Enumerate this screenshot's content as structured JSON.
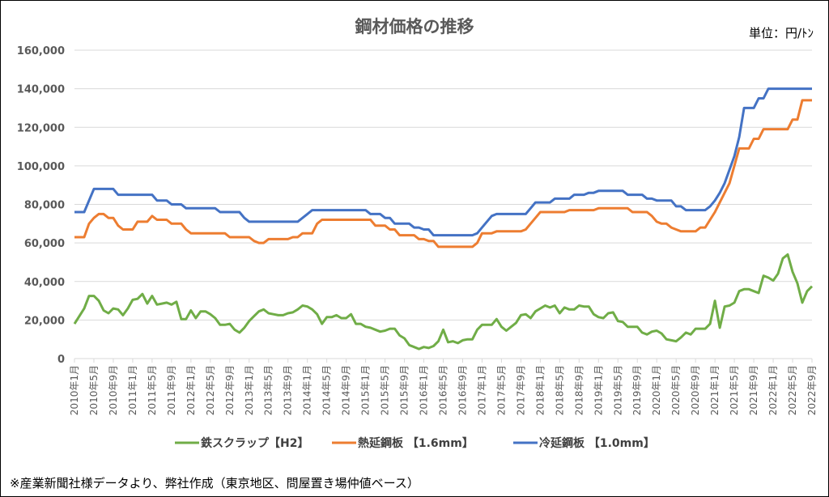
{
  "chart_data": {
    "type": "line",
    "title": "鋼材価格の推移",
    "unit_label": "単位：円/ﾄﾝ",
    "ylim": [
      0,
      160000
    ],
    "y_ticks": [
      "0",
      "20,000",
      "40,000",
      "60,000",
      "80,000",
      "100,000",
      "120,000",
      "140,000",
      "160,000"
    ],
    "y_tick_values": [
      0,
      20000,
      40000,
      60000,
      80000,
      100000,
      120000,
      140000,
      160000
    ],
    "grid": true,
    "legend": "bottom",
    "x_start": "2010年1月",
    "x_end": "2022年9月",
    "x_tick_labels": [
      "2010年1月",
      "2010年5月",
      "2010年9月",
      "2011年1月",
      "2011年5月",
      "2011年9月",
      "2012年1月",
      "2012年5月",
      "2012年9月",
      "2013年1月",
      "2013年5月",
      "2013年9月",
      "2014年1月",
      "2014年5月",
      "2014年9月",
      "2015年1月",
      "2015年5月",
      "2015年9月",
      "2016年1月",
      "2016年5月",
      "2016年9月",
      "2017年1月",
      "2017年5月",
      "2017年9月",
      "2018年1月",
      "2018年5月",
      "2018年9月",
      "2019年1月",
      "2019年5月",
      "2019年9月",
      "2020年1月",
      "2020年5月",
      "2020年9月",
      "2021年1月",
      "2021年5月",
      "2021年9月",
      "2022年1月",
      "2022年5月",
      "2022年9月"
    ],
    "series": [
      {
        "name": "鉄スクラップ【H2】",
        "color": "#70AD47",
        "values_thousand_yen": [
          18,
          22,
          26,
          32.5,
          32.5,
          30,
          25,
          23.5,
          26,
          25.5,
          22.5,
          26,
          30.5,
          31,
          33.5,
          28.5,
          32.5,
          28,
          28.5,
          29,
          28,
          29.5,
          20.5,
          20.5,
          25,
          21,
          24.5,
          24.5,
          23,
          21,
          17.5,
          17.5,
          18,
          15,
          13.5,
          16,
          19.5,
          22,
          24.5,
          25.5,
          23.5,
          23,
          22.5,
          22.5,
          23.5,
          24,
          25.5,
          27.5,
          27,
          25.5,
          23,
          18,
          21.5,
          21.5,
          22.5,
          21,
          21,
          23,
          18,
          18,
          16.5,
          16,
          15,
          14,
          14.5,
          15.5,
          15.5,
          12,
          10.5,
          7,
          6,
          5,
          6,
          5.5,
          6.5,
          9,
          15,
          8.5,
          9,
          8,
          9.5,
          10,
          10,
          15,
          17.5,
          17.5,
          17.5,
          20.5,
          16.5,
          14.5,
          16.5,
          18.5,
          22.5,
          23,
          21,
          24.5,
          26,
          27.5,
          26.5,
          27.5,
          23.5,
          26.5,
          25.5,
          25.5,
          27.5,
          27,
          27,
          23,
          21.5,
          21,
          23.5,
          24,
          19.5,
          19,
          16.5,
          16.5,
          16.5,
          13.5,
          12.5,
          14,
          14.5,
          13,
          10,
          9.5,
          9,
          11,
          13.5,
          12.5,
          15.5,
          15.5,
          15.5,
          18,
          30,
          16,
          27,
          27.5,
          29,
          35,
          36,
          36,
          35,
          34,
          43,
          42,
          40.5,
          44,
          52,
          54,
          45,
          39,
          29,
          35,
          37.5
        ]
      },
      {
        "name": "熱延鋼板 【1.6mm】",
        "color": "#ED7D31",
        "values_thousand_yen": [
          63,
          63,
          63,
          70,
          73,
          75,
          75,
          73,
          73,
          69,
          67,
          67,
          67,
          71,
          71,
          71,
          74,
          72,
          72,
          72,
          70,
          70,
          70,
          67,
          65,
          65,
          65,
          65,
          65,
          65,
          65,
          65,
          63,
          63,
          63,
          63,
          63,
          61,
          60,
          60,
          62,
          62,
          62,
          62,
          62,
          63,
          63,
          65,
          65,
          65,
          70,
          72,
          72,
          72,
          72,
          72,
          72,
          72,
          72,
          72,
          72,
          72,
          69,
          69,
          69,
          67,
          67,
          64,
          64,
          64,
          64,
          62,
          62,
          61,
          61,
          58,
          58,
          58,
          58,
          58,
          58,
          58,
          58,
          60,
          65,
          65,
          65,
          66,
          66,
          66,
          66,
          66,
          66,
          67,
          70,
          73,
          76,
          76,
          76,
          76,
          76,
          76,
          77,
          77,
          77,
          77,
          77,
          77,
          78,
          78,
          78,
          78,
          78,
          78,
          78,
          76,
          76,
          76,
          76,
          74,
          71,
          70,
          70,
          68,
          67,
          66,
          66,
          66,
          66,
          68,
          68,
          72,
          76,
          81,
          86,
          91,
          100,
          109,
          109,
          109,
          114,
          114,
          119,
          119,
          119,
          119,
          119,
          119,
          124,
          124,
          134,
          134,
          134
        ]
      },
      {
        "name": "冷延鋼板 【1.0mm】",
        "color": "#4472C4",
        "values_thousand_yen": [
          76,
          76,
          76,
          82,
          88,
          88,
          88,
          88,
          88,
          85,
          85,
          85,
          85,
          85,
          85,
          85,
          85,
          82,
          82,
          82,
          80,
          80,
          80,
          78,
          78,
          78,
          78,
          78,
          78,
          78,
          76,
          76,
          76,
          76,
          76,
          73,
          71,
          71,
          71,
          71,
          71,
          71,
          71,
          71,
          71,
          71,
          71,
          73,
          75,
          77,
          77,
          77,
          77,
          77,
          77,
          77,
          77,
          77,
          77,
          77,
          77,
          75,
          75,
          75,
          73,
          73,
          70,
          70,
          70,
          70,
          68,
          68,
          67,
          67,
          64,
          64,
          64,
          64,
          64,
          64,
          64,
          64,
          64,
          65,
          68,
          71,
          74,
          75,
          75,
          75,
          75,
          75,
          75,
          75,
          78,
          81,
          81,
          81,
          81,
          83,
          83,
          83,
          83,
          85,
          85,
          85,
          86,
          86,
          87,
          87,
          87,
          87,
          87,
          87,
          85,
          85,
          85,
          85,
          83,
          83,
          82,
          82,
          82,
          82,
          79,
          79,
          77,
          77,
          77,
          77,
          77,
          79,
          82,
          86,
          91,
          98,
          105,
          115,
          130,
          130,
          130,
          135,
          135,
          140,
          140,
          140,
          140,
          140,
          140,
          140,
          140,
          140,
          140
        ]
      }
    ]
  },
  "footnote": "※産業新聞社様データより、弊社作成（東京地区、問屋置き場仲値ベース）"
}
